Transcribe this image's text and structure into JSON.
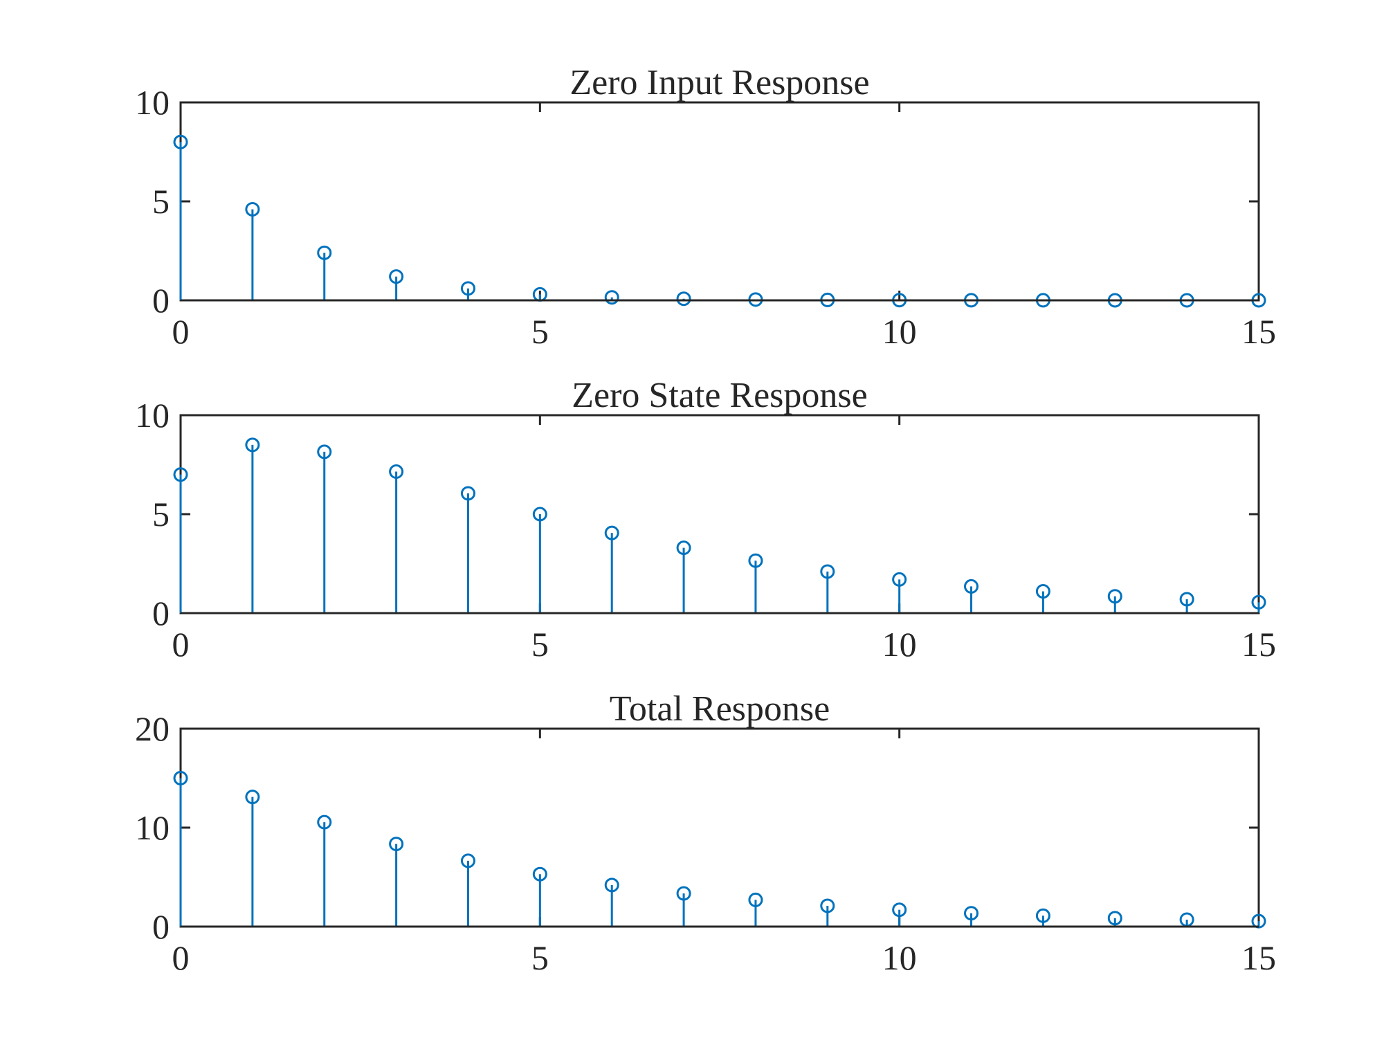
{
  "chart_data": [
    {
      "type": "stem",
      "title": "Zero Input Response",
      "xlabel": "",
      "ylabel": "",
      "xlim": [
        0,
        15
      ],
      "ylim": [
        0,
        10
      ],
      "xticks": [
        0,
        5,
        10,
        15
      ],
      "yticks": [
        0,
        5,
        10
      ],
      "grid": false,
      "x": [
        0,
        1,
        2,
        3,
        4,
        5,
        6,
        7,
        8,
        9,
        10,
        11,
        12,
        13,
        14,
        15
      ],
      "series": [
        {
          "values": [
            8.0,
            4.6,
            2.4,
            1.2,
            0.6,
            0.3,
            0.15,
            0.08,
            0.04,
            0.02,
            0.01,
            0.005,
            0.003,
            0.001,
            0.001,
            0.0
          ],
          "color": "#0072BD",
          "marker": "circle"
        }
      ]
    },
    {
      "type": "stem",
      "title": "Zero State Response",
      "xlabel": "",
      "ylabel": "",
      "xlim": [
        0,
        15
      ],
      "ylim": [
        0,
        10
      ],
      "xticks": [
        0,
        5,
        10,
        15
      ],
      "yticks": [
        0,
        5,
        10
      ],
      "grid": false,
      "x": [
        0,
        1,
        2,
        3,
        4,
        5,
        6,
        7,
        8,
        9,
        10,
        11,
        12,
        13,
        14,
        15
      ],
      "series": [
        {
          "values": [
            7.0,
            8.5,
            8.15,
            7.15,
            6.05,
            5.0,
            4.05,
            3.3,
            2.65,
            2.1,
            1.7,
            1.35,
            1.1,
            0.85,
            0.7,
            0.55
          ],
          "color": "#0072BD",
          "marker": "circle"
        }
      ]
    },
    {
      "type": "stem",
      "title": "Total Response",
      "xlabel": "",
      "ylabel": "",
      "xlim": [
        0,
        15
      ],
      "ylim": [
        0,
        20
      ],
      "xticks": [
        0,
        5,
        10,
        15
      ],
      "yticks": [
        0,
        10,
        20
      ],
      "grid": false,
      "x": [
        0,
        1,
        2,
        3,
        4,
        5,
        6,
        7,
        8,
        9,
        10,
        11,
        12,
        13,
        14,
        15
      ],
      "series": [
        {
          "values": [
            15.0,
            13.1,
            10.55,
            8.35,
            6.65,
            5.3,
            4.2,
            3.35,
            2.7,
            2.1,
            1.7,
            1.35,
            1.1,
            0.85,
            0.7,
            0.55
          ],
          "color": "#0072BD",
          "marker": "circle"
        }
      ]
    }
  ]
}
